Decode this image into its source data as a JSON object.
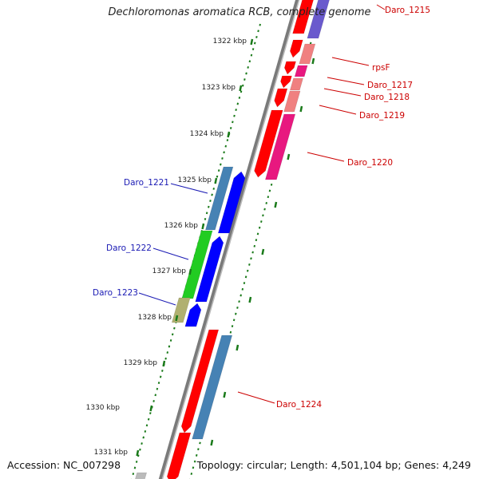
{
  "title": "Dechloromonas aromatica RCB, complete genome",
  "footer": {
    "accession": "Accession: NC_007298",
    "summary": "Topology: circular; Length: 4,501,104 bp; Genes: 4,249"
  },
  "colors": {
    "backbone": "#7a7a7a",
    "tick": "#1a7a1a",
    "label_forward": "#1a1ab4",
    "label_reverse": "#cc0000"
  },
  "kbp_labels": [
    "1322 kbp",
    "1323 kbp",
    "1324 kbp",
    "1325 kbp",
    "1326 kbp",
    "1327 kbp",
    "1328 kbp",
    "1329 kbp",
    "1330 kbp",
    "1331 kbp"
  ],
  "gene_labels": [
    {
      "text": "Daro_1215",
      "side": "right"
    },
    {
      "text": "rpsF",
      "side": "right"
    },
    {
      "text": "Daro_1217",
      "side": "right"
    },
    {
      "text": "Daro_1218",
      "side": "right"
    },
    {
      "text": "Daro_1219",
      "side": "right"
    },
    {
      "text": "Daro_1220",
      "side": "right"
    },
    {
      "text": "Daro_1221",
      "side": "left"
    },
    {
      "text": "Daro_1222",
      "side": "left"
    },
    {
      "text": "Daro_1223",
      "side": "left"
    },
    {
      "text": "Daro_1224",
      "side": "right"
    }
  ]
}
